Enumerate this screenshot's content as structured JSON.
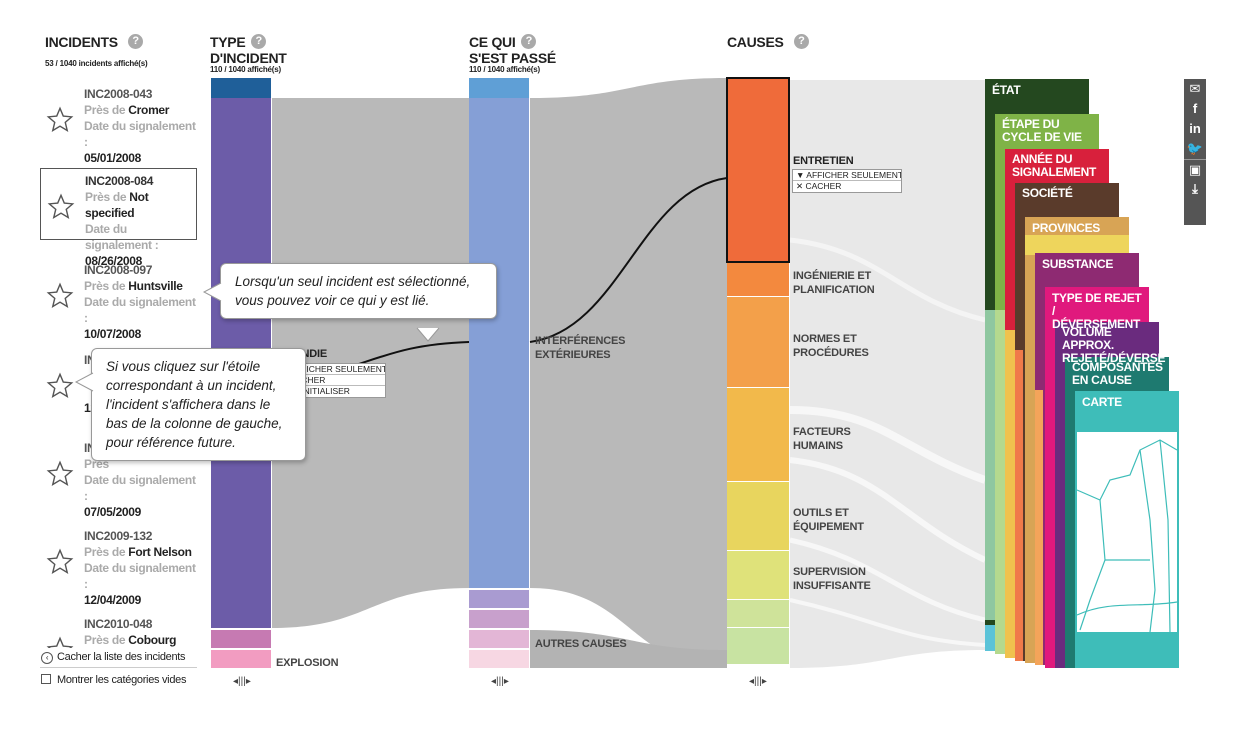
{
  "incidents_header": {
    "title": "INCIDENTS",
    "count": "53 / 1040 incidents affiché(s)"
  },
  "type_header": {
    "title_line1": "TYPE",
    "title_line2": "D'INCIDENT",
    "count": "110 / 1040 affiché(s)"
  },
  "what_header": {
    "title_line1": "CE QUI",
    "title_line2": "S'EST PASSÉ",
    "count": "110 / 1040 affiché(s)"
  },
  "causes_header": {
    "title": "CAUSES"
  },
  "help_glyph": "?",
  "incidents": [
    {
      "id": "INC2008-043",
      "near_label": "Près de ",
      "place": "Cromer",
      "date_label": "Date du signalement :",
      "date": "05/01/2008"
    },
    {
      "id": "INC2008-084",
      "near_label": "Près de ",
      "place": "Not specified",
      "date_label": "Date du signalement :",
      "date": "08/26/2008"
    },
    {
      "id": "INC2008-097",
      "near_label": "Près de ",
      "place": "Huntsville",
      "date_label": "Date du signalement :",
      "date": "10/07/2008"
    },
    {
      "id": "INC2008-123",
      "near_label": "",
      "place": "",
      "date_label": "",
      "date": "12"
    },
    {
      "id": "INC",
      "near_label": "Près",
      "place": "",
      "date_label": "Date du signalement :",
      "date": "07/05/2009"
    },
    {
      "id": "INC2009-132",
      "near_label": "Près de ",
      "place": "Fort Nelson",
      "date_label": "Date du signalement :",
      "date": "12/04/2009"
    },
    {
      "id": "INC2010-048",
      "near_label": "Près de ",
      "place": "Cobourg",
      "date_label": "",
      "date": ""
    }
  ],
  "bottom_controls": {
    "hide_list": "Cacher la liste des incidents",
    "show_empty": "Montrer les catégories vides"
  },
  "drag_handle": "◂|||▸",
  "type_labels": {
    "incendie": "INCENDIE",
    "explosion": "EXPLOSION"
  },
  "type_menu": {
    "show_only": "▼ AFFICHER SEULEMENT",
    "hide": "✕ CACHER",
    "reset": "↺ RÉINITIALISER"
  },
  "what_labels": {
    "interference_line1": "INTERFÉRENCES",
    "interference_line2": "EXTÉRIEURES",
    "other": "AUTRES CAUSES"
  },
  "cause_labels": {
    "entretien": "ENTRETIEN",
    "ingenierie_1": "INGÉNIERIE ET",
    "ingenierie_2": "PLANIFICATION",
    "normes_1": "NORMES ET",
    "normes_2": "PROCÉDURES",
    "facteurs_1": "FACTEURS",
    "facteurs_2": "HUMAINS",
    "outils_1": "OUTILS ET",
    "outils_2": "ÉQUIPEMENT",
    "supervision_1": "SUPERVISION",
    "supervision_2": "INSUFFISANTE"
  },
  "cause_menu": {
    "show_only": "▼ AFFICHER SEULEMENT",
    "hide": "✕ CACHER"
  },
  "tooltips": {
    "linked_1": "Lorsqu'un seul incident est sélectionné,",
    "linked_2": "vous pouvez voir ce qui y est lié.",
    "star_1": "Si vous cliquez sur l'étoile",
    "star_2": "correspondant à un incident,",
    "star_3": "l'incident s'affichera dans le",
    "star_4": "bas de la colonne de gauche,",
    "star_5": "pour référence future."
  },
  "side_tabs": [
    {
      "label": "ÉTAT",
      "color": "#24481f"
    },
    {
      "label": "ÉTAPE DU CYCLE DE VIE",
      "color": "#7fb347"
    },
    {
      "label": "ANNÉE DU SIGNALEMENT",
      "color": "#d8203c"
    },
    {
      "label": "SOCIÉTÉ",
      "color": "#5a3b2b"
    },
    {
      "label": "PROVINCES",
      "color": "#d8a455"
    },
    {
      "label": "SUBSTANCE",
      "color": "#8e2a72"
    },
    {
      "label": "TYPE DE REJET / DÉVERSEMENT",
      "color": "#e0197d"
    },
    {
      "label": "VOLUME APPROX. REJETÉ/DÉVERSÉ",
      "color": "#6a2b7e"
    },
    {
      "label": "COMPOSANTES EN CAUSE",
      "color": "#1e7a70"
    },
    {
      "label": "CARTE",
      "color": "#3ebdb9"
    }
  ],
  "social_icons": [
    "email-icon",
    "facebook-icon",
    "linkedin-icon",
    "twitter-icon",
    "image-icon",
    "download-icon"
  ]
}
